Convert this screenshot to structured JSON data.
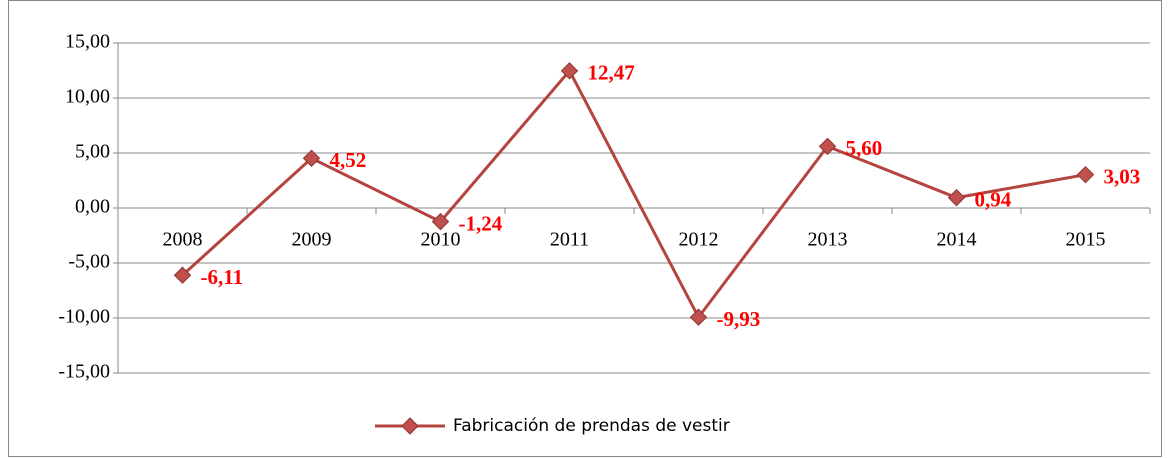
{
  "chart_data": {
    "type": "line",
    "categories": [
      "2008",
      "2009",
      "2010",
      "2011",
      "2012",
      "2013",
      "2014",
      "2015"
    ],
    "series": [
      {
        "name": "Fabricación de prendas de vestir",
        "color": "#b5443f",
        "marker_color": "#c0504d",
        "values": [
          -6.11,
          4.52,
          -1.24,
          12.47,
          -9.93,
          5.6,
          0.94,
          3.03
        ],
        "value_labels": [
          "-6,11",
          "4,52",
          "-1,24",
          "12,47",
          "-9,93",
          "5,60",
          "0,94",
          "3,03"
        ]
      }
    ],
    "ylim": [
      -15,
      15
    ],
    "yticks": [
      {
        "value": -15,
        "label": "-15,00"
      },
      {
        "value": -10,
        "label": "-10,00"
      },
      {
        "value": -5,
        "label": "-5,00"
      },
      {
        "value": 0,
        "label": "0,00"
      },
      {
        "value": 5,
        "label": "5,00"
      },
      {
        "value": 10,
        "label": "10,00"
      },
      {
        "value": 15,
        "label": "15,00"
      }
    ],
    "grid": true,
    "legend": "bottom"
  }
}
